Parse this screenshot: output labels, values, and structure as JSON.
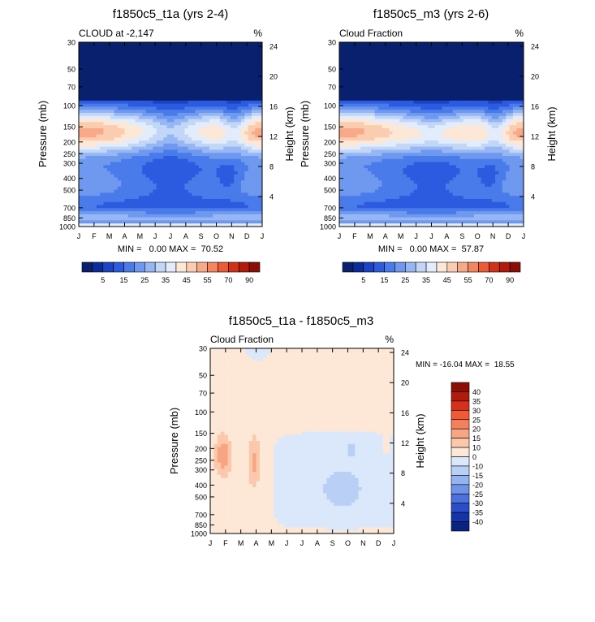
{
  "chart_data": [
    {
      "type": "heatmap",
      "title": "f1850c5_t1a (yrs 2-4)",
      "subtitle_left": "CLOUD at -2,147",
      "units": "%",
      "xlabel": "",
      "ylabel": "Pressure (mb)",
      "ylabel_right": "Height (km)",
      "x_ticks": [
        "J",
        "F",
        "M",
        "A",
        "M",
        "J",
        "J",
        "A",
        "S",
        "O",
        "N",
        "D",
        "J"
      ],
      "y_ticks": [
        "30",
        "50",
        "70",
        "100",
        "150",
        "200",
        "250",
        "300",
        "400",
        "500",
        "700",
        "850",
        "1000"
      ],
      "y_ticks_right": [
        "24",
        "20",
        "16",
        "12",
        "8",
        "4"
      ],
      "stats": "MIN =   0.00 MAX =  70.52",
      "colorbar_labels": [
        "5",
        "15",
        "25",
        "35",
        "45",
        "55",
        "70",
        "90"
      ],
      "field": "base"
    },
    {
      "type": "heatmap",
      "title": "f1850c5_m3 (yrs 2-6)",
      "subtitle_left": "Cloud Fraction",
      "units": "%",
      "xlabel": "",
      "ylabel": "Pressure (mb)",
      "ylabel_right": "Height (km)",
      "x_ticks": [
        "J",
        "F",
        "M",
        "A",
        "M",
        "J",
        "J",
        "A",
        "S",
        "O",
        "N",
        "D",
        "J"
      ],
      "y_ticks": [
        "30",
        "50",
        "70",
        "100",
        "150",
        "200",
        "250",
        "300",
        "400",
        "500",
        "700",
        "850",
        "1000"
      ],
      "y_ticks_right": [
        "24",
        "20",
        "16",
        "12",
        "8",
        "4"
      ],
      "stats": "MIN =   0.00 MAX =  57.87",
      "colorbar_labels": [
        "5",
        "15",
        "25",
        "35",
        "45",
        "55",
        "70",
        "90"
      ],
      "field": "base2"
    },
    {
      "type": "heatmap",
      "title": "f1850c5_t1a - f1850c5_m3",
      "subtitle_left": "Cloud Fraction",
      "units": "%",
      "xlabel": "",
      "ylabel": "Pressure (mb)",
      "ylabel_right": "Height (km)",
      "x_ticks": [
        "J",
        "F",
        "M",
        "A",
        "M",
        "J",
        "J",
        "A",
        "S",
        "O",
        "N",
        "D",
        "J"
      ],
      "y_ticks": [
        "30",
        "50",
        "70",
        "100",
        "150",
        "200",
        "250",
        "300",
        "400",
        "500",
        "700",
        "850",
        "1000"
      ],
      "y_ticks_right": [
        "24",
        "20",
        "16",
        "12",
        "8",
        "4"
      ],
      "stats": "MIN = -16.04 MAX =  18.55",
      "colorbar_labels": [
        "40",
        "35",
        "30",
        "25",
        "20",
        "15",
        "10",
        "0",
        "-10",
        "-15",
        "-20",
        "-25",
        "-30",
        "-35",
        "-40"
      ],
      "field": "diff"
    }
  ],
  "colors": {
    "seq": [
      "#08206e",
      "#0a2d9a",
      "#1c43c4",
      "#2c5be0",
      "#4a7bea",
      "#6f98ef",
      "#97b6f4",
      "#c2d6f8",
      "#e3ecfa",
      "#fde7d6",
      "#fbcdb0",
      "#f8aa88",
      "#f4855f",
      "#eb5c36",
      "#cf3216",
      "#b21a0a",
      "#8b0f04"
    ],
    "div": [
      "#8b0f04",
      "#b21a0a",
      "#d7301a",
      "#f05a3a",
      "#f5805d",
      "#f8a584",
      "#fbc8ac",
      "#fde7d6",
      "#dbe8fb",
      "#b9cff6",
      "#95b3f0",
      "#6f93e8",
      "#4c71de",
      "#2a4ec9",
      "#1634a9",
      "#0a2280"
    ]
  }
}
